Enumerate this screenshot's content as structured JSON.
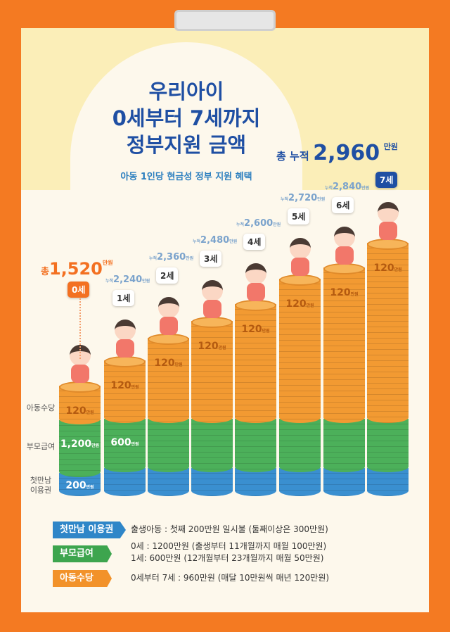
{
  "header": {
    "title_lines": [
      "우리아이",
      "0세부터 7세까지",
      "정부지원 금액"
    ],
    "subtitle": "아동 1인당 현금성 정부 지원 혜택",
    "total_prefix": "총 누적",
    "total_value": "2,960",
    "total_unit": "만원"
  },
  "legend_side": {
    "child_allowance": "아동수당",
    "parent_benefit": "부모급여",
    "first_meeting": "첫만남\n이용권"
  },
  "chart_data": {
    "type": "bar",
    "stacked": true,
    "categories": [
      "0세",
      "1세",
      "2세",
      "3세",
      "4세",
      "5세",
      "6세",
      "7세"
    ],
    "cumulative_labels": [
      {
        "prefix": "총",
        "value": "1,520",
        "unit": "만원"
      },
      {
        "prefix": "누적",
        "value": "2,240",
        "unit": "만원"
      },
      {
        "prefix": "누적",
        "value": "2,360",
        "unit": "만원"
      },
      {
        "prefix": "누적",
        "value": "2,480",
        "unit": "만원"
      },
      {
        "prefix": "누적",
        "value": "2,600",
        "unit": "만원"
      },
      {
        "prefix": "누적",
        "value": "2,720",
        "unit": "만원"
      },
      {
        "prefix": "누적",
        "value": "2,840",
        "unit": "만원"
      },
      {
        "prefix": "총 누적",
        "value": "2,960",
        "unit": "만원"
      }
    ],
    "series": [
      {
        "name": "첫만남 이용권",
        "color": "#3a8fd0",
        "values": [
          200,
          null,
          null,
          null,
          null,
          null,
          null,
          null
        ],
        "labels": [
          "200",
          "",
          "",
          "",
          "",
          "",
          "",
          ""
        ]
      },
      {
        "name": "부모급여",
        "color": "#4cb05a",
        "values": [
          1200,
          600,
          null,
          null,
          null,
          null,
          null,
          null
        ],
        "labels": [
          "1,200",
          "600",
          "",
          "",
          "",
          "",
          "",
          ""
        ]
      },
      {
        "name": "아동수당",
        "color": "#f29a32",
        "values": [
          120,
          120,
          120,
          120,
          120,
          120,
          120,
          120
        ],
        "labels": [
          "120",
          "120",
          "120",
          "120",
          "120",
          "120",
          "120",
          "120"
        ]
      }
    ],
    "unit": "만원",
    "cumulative": [
      1520,
      2240,
      2360,
      2480,
      2600,
      2720,
      2840,
      2960
    ]
  },
  "footer": [
    {
      "tag": "첫만남 이용권",
      "color": "#2f86c8",
      "lines": [
        "출생아동 : 첫째 200만원 일시불 (둘째이상은 300만원)"
      ]
    },
    {
      "tag": "부모급여",
      "color": "#3da54e",
      "lines": [
        "0세 : 1200만원 (출생부터 11개월까지 매월 100만원)",
        "1세: 600만원 (12개월부터 23개월까지 매월 50만원)"
      ]
    },
    {
      "tag": "아동수당",
      "color": "#f2922a",
      "lines": [
        "0세부터 7세 : 960만원 (매달 10만원씩 매년 120만원)"
      ]
    }
  ]
}
